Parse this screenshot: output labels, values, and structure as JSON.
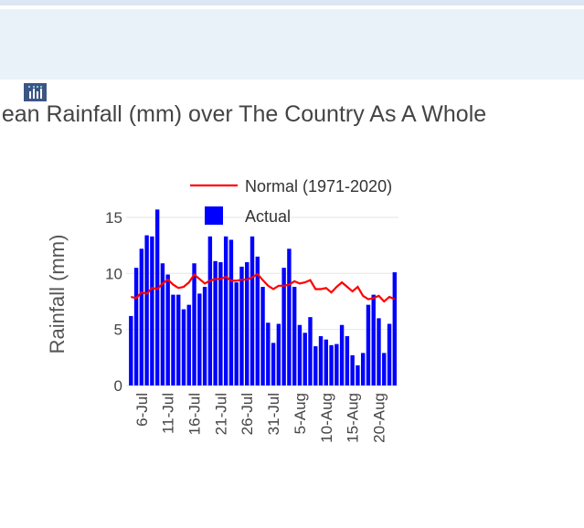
{
  "title": "Mean Rainfall (mm) over The Country As A Whole",
  "logo_icon": "chart-logo-icon",
  "colors": {
    "actual": "#0000ff",
    "normal": "#ff0000",
    "banner": "#e9f1f9"
  },
  "chart_data": {
    "type": "bar",
    "title": "Mean Rainfall (mm) over The Country As A Whole",
    "ylabel": "Rainfall (mm)",
    "xlabel": "",
    "ylim": [
      0,
      15.7
    ],
    "yticks": [
      "0",
      "5",
      "10",
      "15"
    ],
    "ytick_values": [
      0,
      5,
      10,
      15
    ],
    "grid": true,
    "legend_placement": "top-right",
    "x_start": "2023-07-04",
    "xtick_labels": [
      "6-Jul",
      "11-Jul",
      "16-Jul",
      "21-Jul",
      "26-Jul",
      "31-Jul",
      "5-Aug",
      "10-Aug",
      "15-Aug",
      "20-Aug"
    ],
    "xtick_indices": [
      2,
      7,
      12,
      17,
      22,
      27,
      32,
      37,
      42,
      47
    ],
    "categories": [
      "4-Jul",
      "5-Jul",
      "6-Jul",
      "7-Jul",
      "8-Jul",
      "9-Jul",
      "10-Jul",
      "11-Jul",
      "12-Jul",
      "13-Jul",
      "14-Jul",
      "15-Jul",
      "16-Jul",
      "17-Jul",
      "18-Jul",
      "19-Jul",
      "20-Jul",
      "21-Jul",
      "22-Jul",
      "23-Jul",
      "24-Jul",
      "25-Jul",
      "26-Jul",
      "27-Jul",
      "28-Jul",
      "29-Jul",
      "30-Jul",
      "31-Jul",
      "1-Aug",
      "2-Aug",
      "3-Aug",
      "4-Aug",
      "5-Aug",
      "6-Aug",
      "7-Aug",
      "8-Aug",
      "9-Aug",
      "10-Aug",
      "11-Aug",
      "12-Aug",
      "13-Aug",
      "14-Aug",
      "15-Aug",
      "16-Aug",
      "17-Aug",
      "18-Aug",
      "19-Aug",
      "20-Aug",
      "21-Aug",
      "22-Aug",
      "23-Aug"
    ],
    "series": [
      {
        "name": "Normal (1971-2020)",
        "type": "line",
        "values": [
          7.9,
          7.8,
          8.3,
          8.2,
          8.7,
          8.6,
          9.1,
          9.45,
          9.0,
          8.7,
          8.8,
          9.2,
          9.9,
          9.5,
          9.1,
          9.35,
          9.5,
          9.5,
          9.7,
          9.35,
          9.35,
          9.45,
          9.45,
          9.65,
          9.95,
          9.4,
          8.9,
          8.6,
          8.9,
          8.9,
          9.0,
          9.3,
          9.1,
          9.2,
          9.4,
          8.6,
          8.6,
          8.7,
          8.3,
          8.8,
          9.2,
          8.8,
          8.4,
          8.8,
          8.0,
          7.7,
          7.8,
          8.0,
          7.5,
          7.9,
          7.7
        ]
      },
      {
        "name": "Actual",
        "type": "bar",
        "values": [
          6.2,
          10.5,
          12.2,
          13.4,
          13.3,
          15.7,
          10.9,
          9.9,
          8.1,
          8.1,
          6.8,
          7.2,
          10.9,
          8.2,
          8.8,
          13.3,
          11.1,
          11.0,
          13.3,
          13.0,
          9.2,
          10.6,
          11.0,
          13.3,
          11.5,
          8.8,
          5.6,
          3.8,
          5.5,
          10.5,
          12.2,
          8.8,
          5.4,
          4.7,
          6.1,
          3.5,
          4.4,
          4.1,
          3.6,
          3.7,
          5.4,
          4.4,
          2.7,
          1.8,
          2.9,
          7.2,
          8.1,
          6.0,
          2.9,
          5.5,
          10.1
        ]
      }
    ]
  }
}
